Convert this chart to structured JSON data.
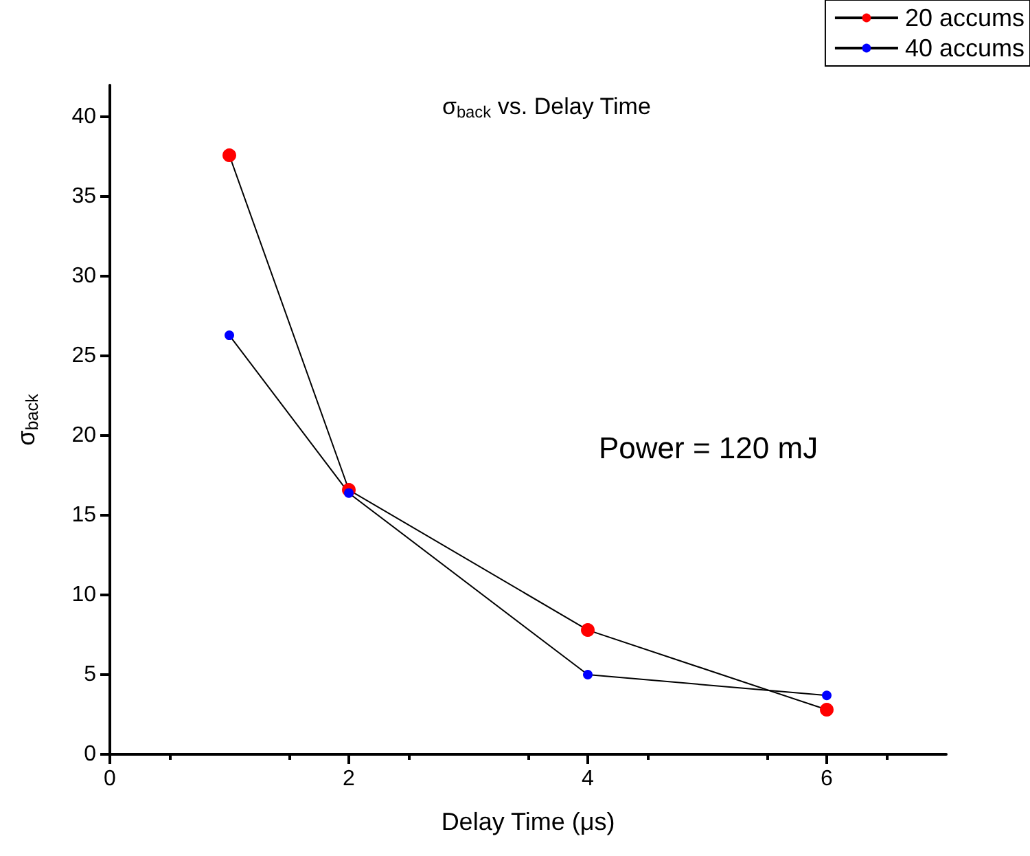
{
  "chart_data": {
    "type": "line",
    "title": "σ$_{back}$ vs. Delay Time",
    "xlabel": "Delay Time (μs)",
    "ylabel": "σ$_{back}$",
    "annotations": [
      "Power = 120 mJ"
    ],
    "x": [
      1,
      2,
      4,
      6
    ],
    "series": [
      {
        "name": "20 accums",
        "color": "#ff0000",
        "values": [
          37.6,
          16.6,
          7.8,
          2.8
        ]
      },
      {
        "name": "40 accums",
        "color": "#0000ff",
        "values": [
          26.3,
          16.4,
          5.0,
          3.7
        ]
      }
    ],
    "xlim": [
      0,
      7
    ],
    "xticks": [
      0,
      2,
      4,
      6
    ],
    "ylim": [
      0,
      42
    ],
    "yticks": [
      0,
      5,
      10,
      15,
      20,
      25,
      30,
      35,
      40
    ],
    "grid": false,
    "legend": "top right",
    "marker": "circle",
    "line_style": "solid"
  }
}
